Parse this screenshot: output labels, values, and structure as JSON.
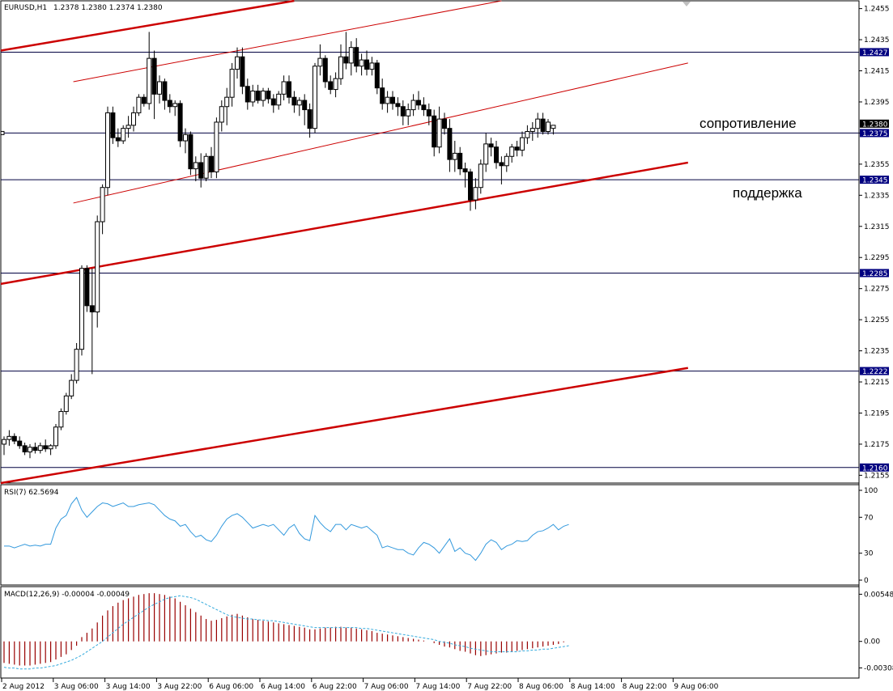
{
  "header": {
    "symbol": "EURUSD,H1",
    "ohlc": "1.2378 1.2380 1.2374 1.2380"
  },
  "annotations": {
    "resistance": "сопротивление",
    "support": "поддержка"
  },
  "colors": {
    "channel": "#cc0000",
    "level": "#000040",
    "rsi": "#3399dd",
    "macd_hist": "#990000",
    "macd_signal": "#33aadd",
    "label_bg": "#000080"
  },
  "chart_data": [
    {
      "type": "candlestick",
      "title": "EURUSD,H1",
      "ylim": [
        1.215,
        1.246
      ],
      "yticks": [
        "1.2455",
        "1.2435",
        "1.2415",
        "1.2395",
        "1.2375",
        "1.2355",
        "1.2335",
        "1.2315",
        "1.2295",
        "1.2275",
        "1.2255",
        "1.2235",
        "1.2215",
        "1.2195",
        "1.2175",
        "1.2155"
      ],
      "xticks": [
        "2 Aug 2012",
        "3 Aug 06:00",
        "3 Aug 14:00",
        "3 Aug 22:00",
        "6 Aug 06:00",
        "6 Aug 14:00",
        "6 Aug 22:00",
        "7 Aug 06:00",
        "7 Aug 14:00",
        "7 Aug 22:00",
        "8 Aug 06:00",
        "8 Aug 14:00",
        "8 Aug 22:00",
        "9 Aug 06:00"
      ],
      "horizontal_levels": [
        {
          "value": 1.2427,
          "label": "1.2427"
        },
        {
          "value": 1.2375,
          "label": "1.2375"
        },
        {
          "value": 1.2345,
          "label": "1.2345"
        },
        {
          "value": 1.2285,
          "label": "1.2285"
        },
        {
          "value": 1.2222,
          "label": "1.2222"
        },
        {
          "value": 1.216,
          "label": "1.2160"
        }
      ],
      "current_price": {
        "value": 1.238,
        "label": "1.2380"
      },
      "channels": [
        {
          "style": "thick",
          "points": [
            [
              0,
              1.2428
            ],
            [
              56,
              1.246
            ]
          ]
        },
        {
          "style": "thin",
          "points": [
            [
              14,
              1.2408
            ],
            [
              96,
              1.246
            ]
          ]
        },
        {
          "style": "thin",
          "points": [
            [
              14,
              1.233
            ],
            [
              132,
              1.242
            ]
          ]
        },
        {
          "style": "thick",
          "points": [
            [
              0,
              1.2278
            ],
            [
              132,
              1.2356
            ]
          ]
        },
        {
          "style": "thick",
          "points": [
            [
              0,
              1.215
            ],
            [
              132,
              1.2224
            ]
          ]
        }
      ],
      "candles": [
        [
          1.2175,
          1.218,
          1.2168,
          1.2178
        ],
        [
          1.2178,
          1.2184,
          1.2174,
          1.218
        ],
        [
          1.218,
          1.2182,
          1.2175,
          1.2177
        ],
        [
          1.2177,
          1.218,
          1.2172,
          1.2174
        ],
        [
          1.2174,
          1.2176,
          1.2168,
          1.217
        ],
        [
          1.217,
          1.2175,
          1.2166,
          1.2173
        ],
        [
          1.2173,
          1.2176,
          1.2169,
          1.2171
        ],
        [
          1.2171,
          1.2176,
          1.2169,
          1.2174
        ],
        [
          1.2174,
          1.2178,
          1.217,
          1.2172
        ],
        [
          1.2172,
          1.2175,
          1.2168,
          1.2174
        ],
        [
          1.2174,
          1.2188,
          1.2172,
          1.2186
        ],
        [
          1.2186,
          1.2198,
          1.2184,
          1.2196
        ],
        [
          1.2196,
          1.2208,
          1.2194,
          1.2206
        ],
        [
          1.2206,
          1.222,
          1.2204,
          1.2216
        ],
        [
          1.2216,
          1.224,
          1.2214,
          1.2236
        ],
        [
          1.2236,
          1.229,
          1.2232,
          1.2288
        ],
        [
          1.2288,
          1.229,
          1.226,
          1.2264
        ],
        [
          1.2264,
          1.2288,
          1.222,
          1.226
        ],
        [
          1.226,
          1.2322,
          1.225,
          1.2318
        ],
        [
          1.2318,
          1.2342,
          1.231,
          1.234
        ],
        [
          1.234,
          1.2392,
          1.2335,
          1.2388
        ],
        [
          1.2388,
          1.2392,
          1.2368,
          1.2372
        ],
        [
          1.2372,
          1.2378,
          1.2366,
          1.237
        ],
        [
          1.237,
          1.238,
          1.2368,
          1.2378
        ],
        [
          1.2378,
          1.2386,
          1.2372,
          1.238
        ],
        [
          1.238,
          1.2392,
          1.2376,
          1.2388
        ],
        [
          1.2388,
          1.24,
          1.2386,
          1.2398
        ],
        [
          1.2398,
          1.24,
          1.2392,
          1.2394
        ],
        [
          1.2394,
          1.244,
          1.239,
          1.2423
        ],
        [
          1.2423,
          1.2428,
          1.2384,
          1.24
        ],
        [
          1.24,
          1.2412,
          1.2394,
          1.2408
        ],
        [
          1.2408,
          1.241,
          1.239,
          1.2396
        ],
        [
          1.2396,
          1.24,
          1.2388,
          1.2392
        ],
        [
          1.2392,
          1.2396,
          1.2386,
          1.2394
        ],
        [
          1.2394,
          1.2396,
          1.2366,
          1.237
        ],
        [
          1.237,
          1.2378,
          1.2362,
          1.2374
        ],
        [
          1.2374,
          1.2376,
          1.2348,
          1.2352
        ],
        [
          1.2352,
          1.236,
          1.2344,
          1.2356
        ],
        [
          1.2356,
          1.2362,
          1.234,
          1.2346
        ],
        [
          1.2346,
          1.2362,
          1.2344,
          1.236
        ],
        [
          1.236,
          1.2366,
          1.2346,
          1.235
        ],
        [
          1.235,
          1.2385,
          1.2346,
          1.2382
        ],
        [
          1.2382,
          1.2396,
          1.2376,
          1.2392
        ],
        [
          1.2392,
          1.2404,
          1.238,
          1.2398
        ],
        [
          1.2398,
          1.242,
          1.2392,
          1.2416
        ],
        [
          1.2416,
          1.243,
          1.241,
          1.2424
        ],
        [
          1.2424,
          1.243,
          1.24,
          1.2405
        ],
        [
          1.2405,
          1.241,
          1.239,
          1.2395
        ],
        [
          1.2395,
          1.2406,
          1.2392,
          1.2402
        ],
        [
          1.2402,
          1.2406,
          1.2394,
          1.2396
        ],
        [
          1.2396,
          1.2404,
          1.2392,
          1.2402
        ],
        [
          1.2402,
          1.2404,
          1.2394,
          1.2397
        ],
        [
          1.2397,
          1.24,
          1.2388,
          1.2393
        ],
        [
          1.2393,
          1.2402,
          1.239,
          1.24
        ],
        [
          1.24,
          1.2412,
          1.2396,
          1.2408
        ],
        [
          1.2408,
          1.2412,
          1.2394,
          1.2398
        ],
        [
          1.2398,
          1.2402,
          1.2388,
          1.2393
        ],
        [
          1.2393,
          1.2398,
          1.2386,
          1.2396
        ],
        [
          1.2396,
          1.24,
          1.238,
          1.239
        ],
        [
          1.239,
          1.2394,
          1.2372,
          1.2378
        ],
        [
          1.2378,
          1.242,
          1.2375,
          1.2418
        ],
        [
          1.2418,
          1.2432,
          1.2412,
          1.2423
        ],
        [
          1.2423,
          1.2425,
          1.2404,
          1.2408
        ],
        [
          1.2408,
          1.2412,
          1.24,
          1.2403
        ],
        [
          1.2403,
          1.2414,
          1.2398,
          1.241
        ],
        [
          1.241,
          1.2432,
          1.2406,
          1.2424
        ],
        [
          1.2424,
          1.244,
          1.2416,
          1.242
        ],
        [
          1.242,
          1.2434,
          1.2412,
          1.243
        ],
        [
          1.243,
          1.2436,
          1.2414,
          1.2418
        ],
        [
          1.2418,
          1.2426,
          1.2412,
          1.2422
        ],
        [
          1.2422,
          1.2428,
          1.2412,
          1.2416
        ],
        [
          1.2416,
          1.2424,
          1.2412,
          1.242
        ],
        [
          1.242,
          1.2422,
          1.24,
          1.2404
        ],
        [
          1.2404,
          1.241,
          1.239,
          1.2394
        ],
        [
          1.2394,
          1.2402,
          1.2388,
          1.2398
        ],
        [
          1.2398,
          1.2402,
          1.239,
          1.2394
        ],
        [
          1.2394,
          1.2398,
          1.2386,
          1.2392
        ],
        [
          1.2392,
          1.2396,
          1.238,
          1.2386
        ],
        [
          1.2386,
          1.2394,
          1.238,
          1.239
        ],
        [
          1.239,
          1.24,
          1.2386,
          1.2396
        ],
        [
          1.2396,
          1.2402,
          1.239,
          1.2393
        ],
        [
          1.2393,
          1.2398,
          1.2386,
          1.239
        ],
        [
          1.239,
          1.2394,
          1.238,
          1.2386
        ],
        [
          1.2386,
          1.239,
          1.236,
          1.2366
        ],
        [
          1.2366,
          1.2392,
          1.2362,
          1.2384
        ],
        [
          1.2384,
          1.2388,
          1.2374,
          1.2378
        ],
        [
          1.2378,
          1.2384,
          1.235,
          1.2358
        ],
        [
          1.2358,
          1.237,
          1.235,
          1.2362
        ],
        [
          1.2362,
          1.2366,
          1.2348,
          1.2352
        ],
        [
          1.2352,
          1.2356,
          1.234,
          1.235
        ],
        [
          1.235,
          1.2352,
          1.2325,
          1.2332
        ],
        [
          1.2332,
          1.2346,
          1.2326,
          1.234
        ],
        [
          1.234,
          1.2358,
          1.2336,
          1.2355
        ],
        [
          1.2355,
          1.2375,
          1.235,
          1.2368
        ],
        [
          1.2368,
          1.2372,
          1.236,
          1.2366
        ],
        [
          1.2366,
          1.237,
          1.2352,
          1.2356
        ],
        [
          1.2356,
          1.236,
          1.2342,
          1.2354
        ],
        [
          1.2354,
          1.2362,
          1.235,
          1.236
        ],
        [
          1.236,
          1.2368,
          1.2356,
          1.2366
        ],
        [
          1.2366,
          1.237,
          1.236,
          1.2364
        ],
        [
          1.2364,
          1.2376,
          1.236,
          1.2372
        ],
        [
          1.2372,
          1.238,
          1.2368,
          1.2376
        ],
        [
          1.2376,
          1.2382,
          1.237,
          1.2378
        ],
        [
          1.2378,
          1.2388,
          1.2372,
          1.2384
        ],
        [
          1.2384,
          1.2388,
          1.2374,
          1.2376
        ],
        [
          1.2376,
          1.2384,
          1.2374,
          1.2382
        ],
        [
          1.2378,
          1.238,
          1.2374,
          1.238
        ]
      ]
    },
    {
      "type": "line",
      "title": "RSI(7) 62.5694",
      "ylim": [
        0,
        100
      ],
      "yticks": [
        "100",
        "70",
        "30",
        "0"
      ],
      "values": [
        38,
        38,
        36,
        38,
        40,
        38,
        39,
        38,
        40,
        40,
        58,
        68,
        72,
        85,
        92,
        78,
        70,
        76,
        82,
        86,
        85,
        82,
        84,
        86,
        82,
        82,
        84,
        85,
        86,
        84,
        78,
        72,
        68,
        66,
        60,
        62,
        54,
        48,
        50,
        45,
        43,
        50,
        60,
        68,
        72,
        74,
        70,
        64,
        58,
        60,
        62,
        60,
        62,
        56,
        50,
        58,
        62,
        52,
        46,
        44,
        72,
        64,
        58,
        54,
        62,
        62,
        56,
        62,
        60,
        58,
        60,
        55,
        50,
        36,
        38,
        36,
        34,
        34,
        30,
        28,
        36,
        42,
        40,
        36,
        30,
        38,
        46,
        32,
        36,
        30,
        28,
        22,
        30,
        40,
        45,
        42,
        34,
        38,
        40,
        44,
        43,
        44,
        50,
        54,
        55,
        58,
        62,
        56,
        60,
        62
      ]
    },
    {
      "type": "bar",
      "title": "MACD(12,26,9) -0.00004 -0.00049",
      "ylim": [
        -0.0036,
        0.0058
      ],
      "yticks": [
        "0.00548",
        "0.00",
        "-0.00308"
      ],
      "values": [
        -0.0025,
        -0.0026,
        -0.0027,
        -0.0028,
        -0.0028,
        -0.0028,
        -0.0027,
        -0.0026,
        -0.0025,
        -0.0024,
        -0.0021,
        -0.0018,
        -0.0015,
        -0.001,
        -0.0005,
        0.0005,
        0.001,
        0.0015,
        0.0022,
        0.003,
        0.0036,
        0.0041,
        0.0045,
        0.0048,
        0.005,
        0.0052,
        0.0054,
        0.0055,
        0.0056,
        0.0056,
        0.0055,
        0.0054,
        0.0052,
        0.005,
        0.0046,
        0.0042,
        0.0038,
        0.0034,
        0.003,
        0.0026,
        0.0024,
        0.0025,
        0.0027,
        0.0029,
        0.0031,
        0.0032,
        0.003,
        0.0028,
        0.0026,
        0.0025,
        0.0024,
        0.0023,
        0.0022,
        0.0021,
        0.002,
        0.0019,
        0.0018,
        0.0017,
        0.0016,
        0.0014,
        0.0014,
        0.0015,
        0.0016,
        0.0016,
        0.0017,
        0.0017,
        0.0016,
        0.0016,
        0.0015,
        0.0014,
        0.0013,
        0.0012,
        0.001,
        0.0009,
        0.0008,
        0.0007,
        0.0006,
        0.0005,
        0.0004,
        0.0003,
        0.0002,
        0.0001,
        0.0,
        -0.0002,
        -0.0004,
        -0.0006,
        -0.0007,
        -0.0009,
        -0.0011,
        -0.0012,
        -0.0014,
        -0.0016,
        -0.0017,
        -0.0016,
        -0.0015,
        -0.0014,
        -0.0013,
        -0.0013,
        -0.0012,
        -0.0011,
        -0.001,
        -0.0009,
        -0.0008,
        -0.0007,
        -0.0006,
        -0.0005,
        -0.0004,
        -0.0003,
        -0.0001,
        0.0
      ],
      "signal": [
        -0.003,
        -0.0031,
        -0.0031,
        -0.0032,
        -0.0032,
        -0.0032,
        -0.0031,
        -0.0031,
        -0.003,
        -0.0029,
        -0.0028,
        -0.0026,
        -0.0024,
        -0.0022,
        -0.0019,
        -0.0016,
        -0.0012,
        -0.0008,
        -0.0004,
        0.0,
        0.0005,
        0.001,
        0.0015,
        0.002,
        0.0024,
        0.0028,
        0.0032,
        0.0036,
        0.004,
        0.0043,
        0.0046,
        0.0049,
        0.0051,
        0.0052,
        0.0053,
        0.0052,
        0.0051,
        0.0049,
        0.0046,
        0.0043,
        0.004,
        0.0037,
        0.0034,
        0.0031,
        0.0029,
        0.0028,
        0.0027,
        0.0026,
        0.0026,
        0.0025,
        0.0025,
        0.0024,
        0.0024,
        0.0023,
        0.0022,
        0.0021,
        0.002,
        0.0019,
        0.0018,
        0.0017,
        0.0016,
        0.0016,
        0.0016,
        0.0016,
        0.0016,
        0.0016,
        0.0016,
        0.0016,
        0.0016,
        0.0015,
        0.0015,
        0.0014,
        0.0013,
        0.0012,
        0.0011,
        0.001,
        0.0009,
        0.0008,
        0.0007,
        0.0006,
        0.0005,
        0.0004,
        0.0003,
        0.0002,
        0.0,
        -0.0001,
        -0.0002,
        -0.0004,
        -0.0005,
        -0.0006,
        -0.0008,
        -0.0009,
        -0.001,
        -0.0011,
        -0.0012,
        -0.0012,
        -0.0012,
        -0.0012,
        -0.0012,
        -0.0012,
        -0.0011,
        -0.0011,
        -0.001,
        -0.001,
        -0.0009,
        -0.0009,
        -0.0008,
        -0.0007,
        -0.0006,
        -0.0005
      ]
    }
  ]
}
